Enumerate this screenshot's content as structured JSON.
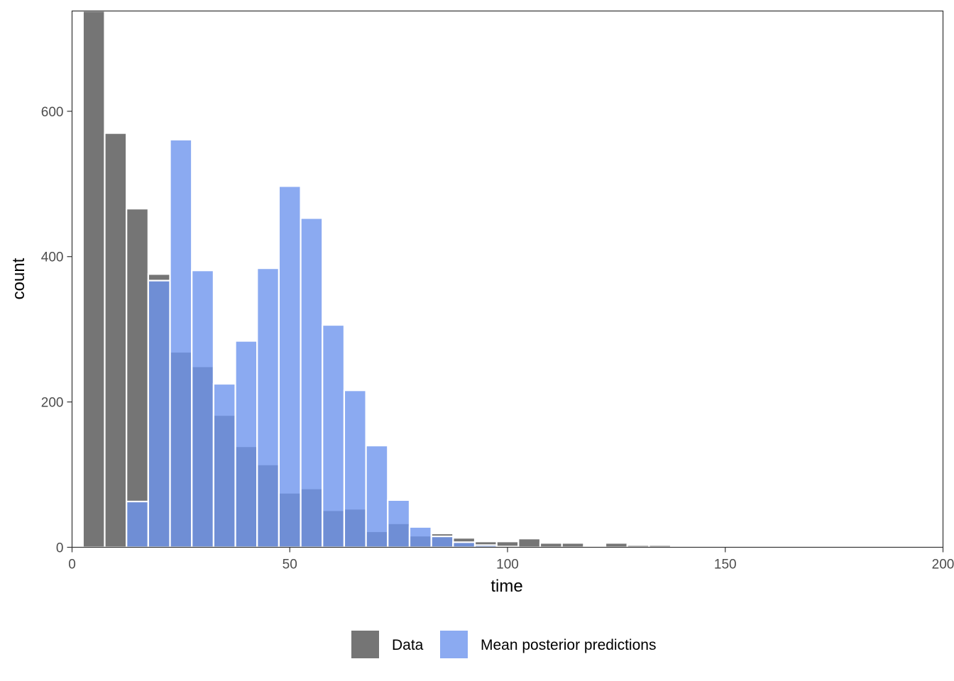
{
  "chart_data": {
    "type": "bar",
    "xlabel": "time",
    "ylabel": "count",
    "xlim": [
      0,
      200
    ],
    "ylim": [
      0,
      738
    ],
    "x_ticks": [
      0,
      50,
      100,
      150,
      200
    ],
    "y_ticks": [
      0,
      200,
      400,
      600
    ],
    "bin_width": 5,
    "grid": false,
    "legend_position": "bottom",
    "x": [
      5,
      10,
      15,
      20,
      25,
      30,
      35,
      40,
      45,
      50,
      55,
      60,
      65,
      70,
      75,
      80,
      85,
      90,
      95,
      100,
      105,
      110,
      115,
      120,
      125,
      130,
      135,
      140,
      145,
      150,
      155,
      160,
      165,
      170,
      175,
      180,
      185,
      190,
      195
    ],
    "series": [
      {
        "name": "Data",
        "color": "#757575",
        "values": [
          740,
          570,
          466,
          376,
          269,
          249,
          182,
          139,
          114,
          75,
          81,
          51,
          53,
          22,
          33,
          16,
          19,
          13,
          8,
          8,
          12,
          6,
          6,
          1,
          6,
          3,
          3,
          1,
          1,
          1,
          1,
          1,
          2,
          0,
          0,
          0,
          0,
          0,
          0
        ]
      },
      {
        "name": "Mean posterior predictions",
        "color": "#6e95ee",
        "values": [
          0,
          0,
          63,
          367,
          561,
          381,
          225,
          284,
          384,
          497,
          453,
          306,
          216,
          140,
          65,
          28,
          15,
          7,
          3,
          1,
          0,
          0,
          0,
          0,
          0,
          0,
          0,
          0,
          0,
          0,
          0,
          0,
          0,
          0,
          0,
          0,
          0,
          0,
          0
        ]
      }
    ]
  }
}
